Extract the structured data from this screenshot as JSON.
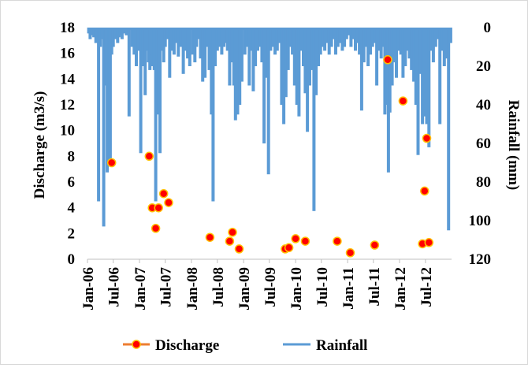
{
  "chart_data": {
    "type": "bar+scatter",
    "x_axis": {
      "type": "date",
      "range": [
        "2006-01-01",
        "2012-12-31"
      ],
      "tick_labels": [
        "Jan-06",
        "Jul-06",
        "Jan-07",
        "Jul-07",
        "Jan-08",
        "Jul-08",
        "Jan-09",
        "Jul-09",
        "Jan-10",
        "Jul-10",
        "Jan-11",
        "Jul-11",
        "Jan-12",
        "Jul-12"
      ],
      "tick_dates": [
        "2006-01-01",
        "2006-07-01",
        "2007-01-01",
        "2007-07-01",
        "2008-01-01",
        "2008-07-01",
        "2009-01-01",
        "2009-07-01",
        "2010-01-01",
        "2010-07-01",
        "2011-01-01",
        "2011-07-01",
        "2012-01-01",
        "2012-07-01"
      ]
    },
    "y_left": {
      "label": "Discharge (m3/s)",
      "range": [
        0,
        18
      ],
      "ticks": [
        0,
        2,
        4,
        6,
        8,
        10,
        12,
        14,
        16,
        18
      ]
    },
    "y_right": {
      "label": "Rainfall (mm)",
      "range": [
        0,
        120
      ],
      "inverted": true,
      "ticks": [
        0,
        20,
        40,
        60,
        80,
        100,
        120
      ]
    },
    "legend": {
      "position": "bottom",
      "items": [
        {
          "name": "Discharge",
          "type": "line-marker",
          "color": "#ed7d31",
          "marker_fill": "#ff0000"
        },
        {
          "name": "Rainfall",
          "type": "line",
          "color": "#5b9bd5"
        }
      ]
    },
    "series": [
      {
        "name": "Discharge",
        "axis": "left",
        "color": "#ed7d31",
        "marker_fill": "#ff0000",
        "points": [
          {
            "x": "2006-06-20",
            "y": 7.5
          },
          {
            "x": "2007-03-10",
            "y": 8.0
          },
          {
            "x": "2007-04-01",
            "y": 4.0
          },
          {
            "x": "2007-04-25",
            "y": 2.4
          },
          {
            "x": "2007-05-15",
            "y": 4.0
          },
          {
            "x": "2007-06-20",
            "y": 5.1
          },
          {
            "x": "2007-07-25",
            "y": 4.4
          },
          {
            "x": "2008-05-10",
            "y": 1.7
          },
          {
            "x": "2008-09-25",
            "y": 1.4
          },
          {
            "x": "2008-10-15",
            "y": 2.1
          },
          {
            "x": "2008-12-01",
            "y": 0.8
          },
          {
            "x": "2009-10-20",
            "y": 0.8
          },
          {
            "x": "2009-11-15",
            "y": 0.9
          },
          {
            "x": "2010-01-01",
            "y": 1.6
          },
          {
            "x": "2010-03-10",
            "y": 1.4
          },
          {
            "x": "2010-10-20",
            "y": 1.4
          },
          {
            "x": "2011-01-20",
            "y": 0.5
          },
          {
            "x": "2011-07-10",
            "y": 1.1
          },
          {
            "x": "2011-10-10",
            "y": 15.5
          },
          {
            "x": "2012-01-25",
            "y": 12.3
          },
          {
            "x": "2012-06-10",
            "y": 1.2
          },
          {
            "x": "2012-06-25",
            "y": 5.3
          },
          {
            "x": "2012-07-10",
            "y": 9.4
          },
          {
            "x": "2012-07-25",
            "y": 1.3
          }
        ]
      },
      {
        "name": "Rainfall",
        "axis": "right",
        "color": "#5b9bd5",
        "points": [
          [
            "2006-01-10",
            3
          ],
          [
            "2006-01-20",
            6
          ],
          [
            "2006-02-01",
            4
          ],
          [
            "2006-02-15",
            5
          ],
          [
            "2006-03-01",
            8
          ],
          [
            "2006-03-12",
            2
          ],
          [
            "2006-03-20",
            90
          ],
          [
            "2006-04-01",
            10
          ],
          [
            "2006-04-15",
            6
          ],
          [
            "2006-04-25",
            103
          ],
          [
            "2006-05-05",
            12
          ],
          [
            "2006-05-12",
            30
          ],
          [
            "2006-05-20",
            75
          ],
          [
            "2006-06-01",
            35
          ],
          [
            "2006-06-10",
            70
          ],
          [
            "2006-06-20",
            14
          ],
          [
            "2006-07-01",
            10
          ],
          [
            "2006-07-15",
            6
          ],
          [
            "2006-08-01",
            8
          ],
          [
            "2006-08-10",
            5
          ],
          [
            "2006-08-20",
            4
          ],
          [
            "2006-09-01",
            6
          ],
          [
            "2006-09-10",
            3
          ],
          [
            "2006-10-01",
            4
          ],
          [
            "2006-10-20",
            46
          ],
          [
            "2006-11-10",
            10
          ],
          [
            "2006-11-25",
            14
          ],
          [
            "2006-12-10",
            20
          ],
          [
            "2006-12-25",
            12
          ],
          [
            "2007-01-10",
            65
          ],
          [
            "2007-01-25",
            20
          ],
          [
            "2007-02-10",
            35
          ],
          [
            "2007-02-20",
            12
          ],
          [
            "2007-03-05",
            18
          ],
          [
            "2007-03-15",
            22
          ],
          [
            "2007-03-25",
            14
          ],
          [
            "2007-04-05",
            20
          ],
          [
            "2007-04-15",
            22
          ],
          [
            "2007-04-25",
            90
          ],
          [
            "2007-05-05",
            35
          ],
          [
            "2007-05-15",
            45
          ],
          [
            "2007-05-25",
            65
          ],
          [
            "2007-06-05",
            12
          ],
          [
            "2007-06-20",
            18
          ],
          [
            "2007-07-01",
            10
          ],
          [
            "2007-07-15",
            6
          ],
          [
            "2007-08-01",
            26
          ],
          [
            "2007-08-15",
            12
          ],
          [
            "2007-09-01",
            14
          ],
          [
            "2007-09-15",
            8
          ],
          [
            "2007-10-01",
            15
          ],
          [
            "2007-10-20",
            10
          ],
          [
            "2007-11-05",
            24
          ],
          [
            "2007-11-20",
            12
          ],
          [
            "2007-12-05",
            16
          ],
          [
            "2007-12-20",
            20
          ],
          [
            "2008-01-10",
            14
          ],
          [
            "2008-01-25",
            18
          ],
          [
            "2008-02-05",
            10
          ],
          [
            "2008-02-20",
            6
          ],
          [
            "2008-03-05",
            16
          ],
          [
            "2008-03-20",
            28
          ],
          [
            "2008-04-05",
            26
          ],
          [
            "2008-04-20",
            10
          ],
          [
            "2008-05-05",
            22
          ],
          [
            "2008-05-20",
            45
          ],
          [
            "2008-06-01",
            90
          ],
          [
            "2008-06-15",
            20
          ],
          [
            "2008-07-01",
            12
          ],
          [
            "2008-07-15",
            10
          ],
          [
            "2008-08-01",
            14
          ],
          [
            "2008-08-15",
            10
          ],
          [
            "2008-09-01",
            8
          ],
          [
            "2008-09-10",
            12
          ],
          [
            "2008-09-25",
            30
          ],
          [
            "2008-10-10",
            18
          ],
          [
            "2008-10-25",
            30
          ],
          [
            "2008-11-05",
            48
          ],
          [
            "2008-11-20",
            45
          ],
          [
            "2008-12-05",
            40
          ],
          [
            "2008-12-20",
            28
          ],
          [
            "2009-01-10",
            14
          ],
          [
            "2009-01-25",
            10
          ],
          [
            "2009-02-10",
            30
          ],
          [
            "2009-02-25",
            12
          ],
          [
            "2009-03-10",
            33
          ],
          [
            "2009-03-25",
            20
          ],
          [
            "2009-04-10",
            12
          ],
          [
            "2009-04-25",
            10
          ],
          [
            "2009-05-10",
            18
          ],
          [
            "2009-05-25",
            60
          ],
          [
            "2009-06-10",
            26
          ],
          [
            "2009-06-25",
            76
          ],
          [
            "2009-07-10",
            12
          ],
          [
            "2009-07-25",
            10
          ],
          [
            "2009-08-10",
            14
          ],
          [
            "2009-08-25",
            12
          ],
          [
            "2009-09-10",
            8
          ],
          [
            "2009-09-25",
            40
          ],
          [
            "2009-10-10",
            50
          ],
          [
            "2009-10-25",
            36
          ],
          [
            "2009-11-10",
            22
          ],
          [
            "2009-11-25",
            10
          ],
          [
            "2009-12-10",
            14
          ],
          [
            "2009-12-25",
            30
          ],
          [
            "2010-01-10",
            40
          ],
          [
            "2010-01-25",
            46
          ],
          [
            "2010-02-10",
            12
          ],
          [
            "2010-02-25",
            20
          ],
          [
            "2010-03-10",
            34
          ],
          [
            "2010-03-25",
            54
          ],
          [
            "2010-04-10",
            30
          ],
          [
            "2010-04-25",
            22
          ],
          [
            "2010-05-10",
            95
          ],
          [
            "2010-05-25",
            35
          ],
          [
            "2010-06-10",
            20
          ],
          [
            "2010-06-25",
            14
          ],
          [
            "2010-07-10",
            10
          ],
          [
            "2010-07-25",
            12
          ],
          [
            "2010-08-10",
            8
          ],
          [
            "2010-08-25",
            14
          ],
          [
            "2010-09-10",
            10
          ],
          [
            "2010-09-25",
            6
          ],
          [
            "2010-10-10",
            14
          ],
          [
            "2010-10-25",
            10
          ],
          [
            "2010-11-10",
            8
          ],
          [
            "2010-11-25",
            12
          ],
          [
            "2010-12-10",
            10
          ],
          [
            "2010-12-25",
            6
          ],
          [
            "2011-01-10",
            4
          ],
          [
            "2011-01-25",
            10
          ],
          [
            "2011-02-10",
            6
          ],
          [
            "2011-02-25",
            12
          ],
          [
            "2011-03-10",
            8
          ],
          [
            "2011-03-25",
            14
          ],
          [
            "2011-04-10",
            43
          ],
          [
            "2011-04-25",
            18
          ],
          [
            "2011-05-10",
            10
          ],
          [
            "2011-05-25",
            20
          ],
          [
            "2011-06-10",
            14
          ],
          [
            "2011-06-25",
            10
          ],
          [
            "2011-07-10",
            8
          ],
          [
            "2011-07-25",
            30
          ],
          [
            "2011-08-10",
            12
          ],
          [
            "2011-08-25",
            16
          ],
          [
            "2011-09-10",
            10
          ],
          [
            "2011-09-20",
            45
          ],
          [
            "2011-10-05",
            40
          ],
          [
            "2011-10-15",
            75
          ],
          [
            "2011-10-25",
            44
          ],
          [
            "2011-11-10",
            30
          ],
          [
            "2011-11-25",
            18
          ],
          [
            "2011-12-10",
            26
          ],
          [
            "2011-12-25",
            12
          ],
          [
            "2012-01-10",
            14
          ],
          [
            "2012-01-25",
            26
          ],
          [
            "2012-02-10",
            20
          ],
          [
            "2012-02-25",
            12
          ],
          [
            "2012-03-10",
            16
          ],
          [
            "2012-03-25",
            22
          ],
          [
            "2012-04-10",
            28
          ],
          [
            "2012-04-25",
            40
          ],
          [
            "2012-05-10",
            66
          ],
          [
            "2012-05-25",
            24
          ],
          [
            "2012-06-10",
            50
          ],
          [
            "2012-06-25",
            46
          ],
          [
            "2012-07-10",
            50
          ],
          [
            "2012-07-25",
            62
          ],
          [
            "2012-08-10",
            12
          ],
          [
            "2012-08-25",
            18
          ],
          [
            "2012-09-10",
            10
          ],
          [
            "2012-09-25",
            6
          ],
          [
            "2012-10-10",
            50
          ],
          [
            "2012-10-25",
            12
          ],
          [
            "2012-11-10",
            20
          ],
          [
            "2012-11-25",
            16
          ],
          [
            "2012-12-10",
            105
          ],
          [
            "2012-12-25",
            8
          ]
        ]
      }
    ]
  }
}
